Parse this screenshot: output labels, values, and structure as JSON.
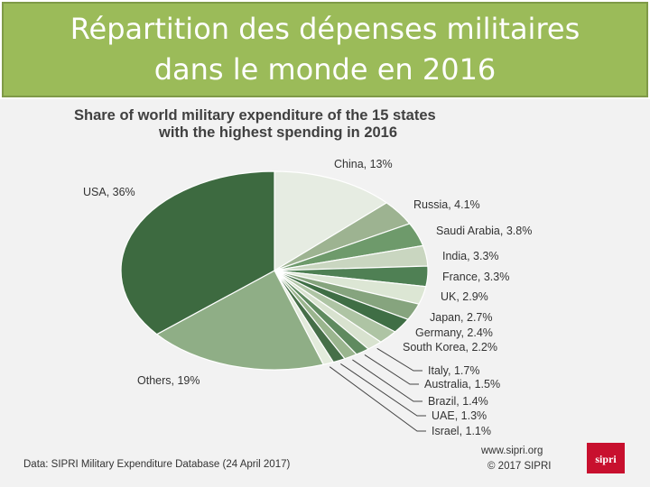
{
  "banner": {
    "title": "Répartition des dépenses militaires dans le monde en 2016",
    "color": "#9bbb59"
  },
  "chart_data": {
    "type": "pie",
    "title_line1": "Share of world military expenditure of the 15 states",
    "title_line2": "with the highest spending in 2016",
    "unit": "%",
    "slices": [
      {
        "label": "China",
        "value": 13,
        "text": "China, 13%",
        "color": "#e6ece2"
      },
      {
        "label": "Russia",
        "value": 4.1,
        "text": "Russia, 4.1%",
        "color": "#9db391"
      },
      {
        "label": "Saudi Arabia",
        "value": 3.8,
        "text": "Saudi Arabia, 3.8%",
        "color": "#6e9a6b"
      },
      {
        "label": "India",
        "value": 3.3,
        "text": "India, 3.3%",
        "color": "#c9d6c0"
      },
      {
        "label": "France",
        "value": 3.3,
        "text": "France, 3.3%",
        "color": "#4f8054"
      },
      {
        "label": "UK",
        "value": 2.9,
        "text": "UK, 2.9%",
        "color": "#dce6d4"
      },
      {
        "label": "Japan",
        "value": 2.7,
        "text": "Japan, 2.7%",
        "color": "#86a47e"
      },
      {
        "label": "Germany",
        "value": 2.4,
        "text": "Germany, 2.4%",
        "color": "#3f6e45"
      },
      {
        "label": "South Korea",
        "value": 2.2,
        "text": "South Korea, 2.2%",
        "color": "#aec4a4"
      },
      {
        "label": "Italy",
        "value": 1.7,
        "text": "Italy, 1.7%",
        "color": "#d8e2cf"
      },
      {
        "label": "Australia",
        "value": 1.5,
        "text": "Australia, 1.5%",
        "color": "#5f8a5f"
      },
      {
        "label": "Brazil",
        "value": 1.4,
        "text": "Brazil, 1.4%",
        "color": "#9ab58e"
      },
      {
        "label": "UAE",
        "value": 1.3,
        "text": "UAE, 1.3%",
        "color": "#466f48"
      },
      {
        "label": "Israel",
        "value": 1.1,
        "text": "Israel, 1.1%",
        "color": "#e3ebdc"
      },
      {
        "label": "Others",
        "value": 19,
        "text": "Others, 19%",
        "color": "#8fae86"
      },
      {
        "label": "USA",
        "value": 36,
        "text": "USA, 36%",
        "color": "#3d6a40"
      }
    ]
  },
  "footer": {
    "source": "Data: SIPRI Military Expenditure Database (24 April 2017)",
    "website": "www.sipri.org",
    "copyright": "© 2017 SIPRI",
    "logo_text": "sipri",
    "logo_color": "#c8102e"
  }
}
